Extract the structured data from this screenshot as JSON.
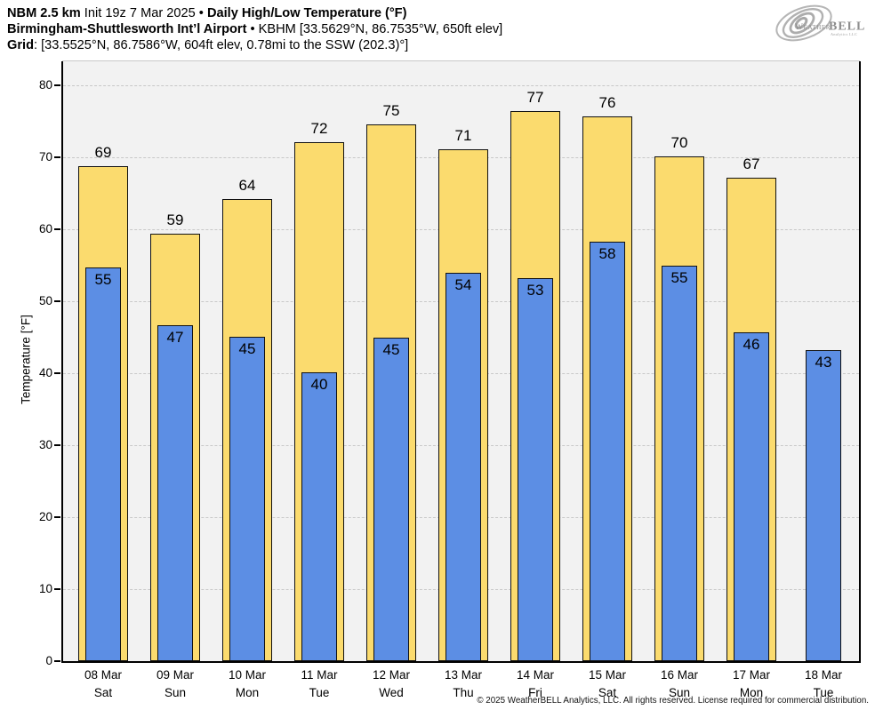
{
  "header": {
    "line1_model": "NBM 2.5 km",
    "line1_init": "Init 19z 7 Mar 2025",
    "line1_sep": "•",
    "line1_title": "Daily High/Low Temperature (°F)",
    "line2_station": "Birmingham-Shuttlesworth Int’l Airport",
    "line2_details": "• KBHM [33.5629°N, 86.7535°W, 650ft elev]",
    "line3_label": "Grid",
    "line3_details": ": [33.5525°N, 86.7586°W, 604ft elev, 0.78mi to the SSW (202.3)°]"
  },
  "logo": {
    "weather": "Weather",
    "bell": "BELL",
    "sub": "Analytics LLC"
  },
  "chart_data": {
    "type": "bar",
    "title": "Daily High/Low Temperature (°F)",
    "ylabel": "Temperature [°F]",
    "ylim": [
      0,
      83.3
    ],
    "yticks": [
      0,
      10,
      20,
      30,
      40,
      50,
      60,
      70,
      80
    ],
    "grid": "horizontal-dashed",
    "legend": "none",
    "categories": [
      {
        "date": "08 Mar",
        "day": "Sat"
      },
      {
        "date": "09 Mar",
        "day": "Sun"
      },
      {
        "date": "10 Mar",
        "day": "Mon"
      },
      {
        "date": "11 Mar",
        "day": "Tue"
      },
      {
        "date": "12 Mar",
        "day": "Wed"
      },
      {
        "date": "13 Mar",
        "day": "Thu"
      },
      {
        "date": "14 Mar",
        "day": "Fri"
      },
      {
        "date": "15 Mar",
        "day": "Sat"
      },
      {
        "date": "16 Mar",
        "day": "Sun"
      },
      {
        "date": "17 Mar",
        "day": "Mon"
      },
      {
        "date": "18 Mar",
        "day": "Tue"
      }
    ],
    "series": [
      {
        "name": "Daily High",
        "color": "#fbdb6e",
        "values": [
          69,
          59,
          64,
          72,
          75,
          71,
          77,
          76,
          70,
          67,
          null
        ],
        "bar_values": [
          68.7,
          59.4,
          64.1,
          72.0,
          74.5,
          71.1,
          76.4,
          75.6,
          70.1,
          67.1,
          null
        ]
      },
      {
        "name": "Daily Low",
        "color": "#5c8ee4",
        "values": [
          55,
          47,
          45,
          40,
          45,
          54,
          53,
          58,
          55,
          46,
          43
        ],
        "bar_values": [
          54.6,
          46.6,
          45.0,
          40.1,
          44.9,
          53.9,
          53.2,
          58.2,
          54.9,
          45.6,
          43.2
        ]
      }
    ]
  },
  "colors": {
    "high_bar": "#fbdb6e",
    "low_bar": "#5c8ee4",
    "bar_border": "#111111",
    "plot_background": "#f2f2f2",
    "gridline": "#c8c8c8",
    "axis": "#000000"
  },
  "footer": {
    "copyright": "© 2025 WeatherBELL Analytics, LLC. All rights reserved. License required for commercial distribution."
  }
}
